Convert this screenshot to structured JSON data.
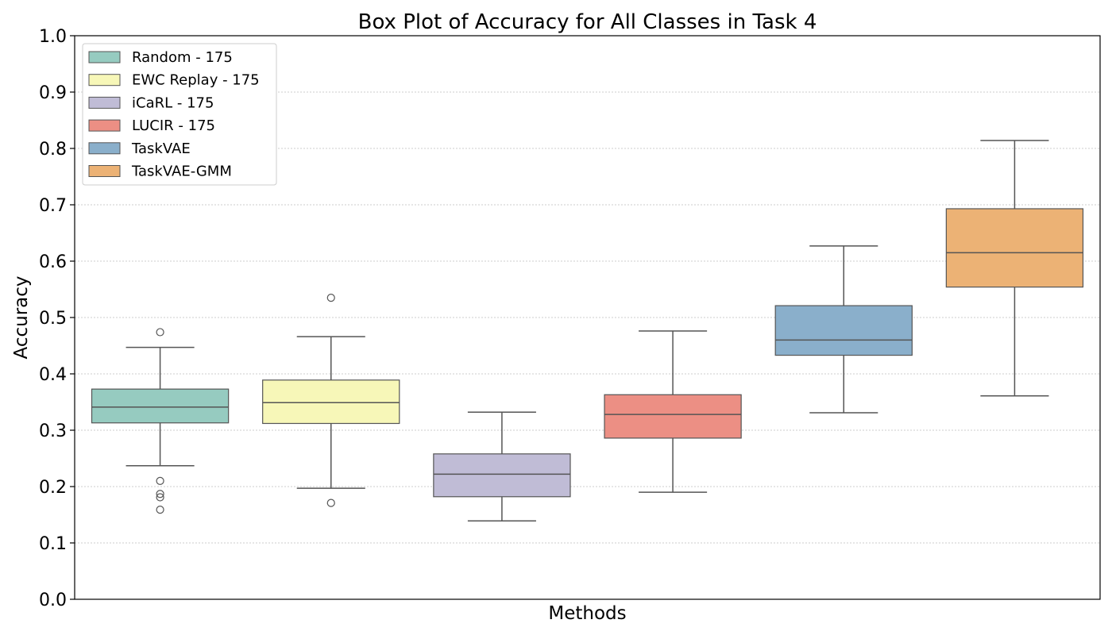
{
  "chart_data": {
    "type": "box",
    "title": "Box Plot of Accuracy for All Classes in Task 4",
    "xlabel": "Methods",
    "ylabel": "Accuracy",
    "ylim": [
      0,
      1.0
    ],
    "yticks": [
      "0.0",
      "0.1",
      "0.2",
      "0.3",
      "0.4",
      "0.5",
      "0.6",
      "0.7",
      "0.8",
      "0.9",
      "1.0"
    ],
    "grid": "horizontal-dotted",
    "legend_position": "top-left",
    "series": [
      {
        "name": "Random - 175",
        "color": "#96cbc0",
        "whisker_low": 0.237,
        "q1": 0.313,
        "median": 0.341,
        "q3": 0.373,
        "whisker_high": 0.447,
        "outliers": [
          0.474,
          0.21,
          0.187,
          0.181,
          0.159
        ]
      },
      {
        "name": "EWC Replay - 175",
        "color": "#f7f7b8",
        "whisker_low": 0.197,
        "q1": 0.312,
        "median": 0.349,
        "q3": 0.389,
        "whisker_high": 0.466,
        "outliers": [
          0.535,
          0.171
        ]
      },
      {
        "name": "iCaRL - 175",
        "color": "#c0bcd6",
        "whisker_low": 0.139,
        "q1": 0.182,
        "median": 0.222,
        "q3": 0.258,
        "whisker_high": 0.332,
        "outliers": []
      },
      {
        "name": "LUCIR - 175",
        "color": "#ec8f84",
        "whisker_low": 0.19,
        "q1": 0.286,
        "median": 0.328,
        "q3": 0.363,
        "whisker_high": 0.476,
        "outliers": []
      },
      {
        "name": "TaskVAE",
        "color": "#8aafcb",
        "whisker_low": 0.331,
        "q1": 0.433,
        "median": 0.46,
        "q3": 0.521,
        "whisker_high": 0.627,
        "outliers": []
      },
      {
        "name": "TaskVAE-GMM",
        "color": "#ecb275",
        "whisker_low": 0.361,
        "q1": 0.554,
        "median": 0.615,
        "q3": 0.693,
        "whisker_high": 0.814,
        "outliers": []
      }
    ]
  }
}
